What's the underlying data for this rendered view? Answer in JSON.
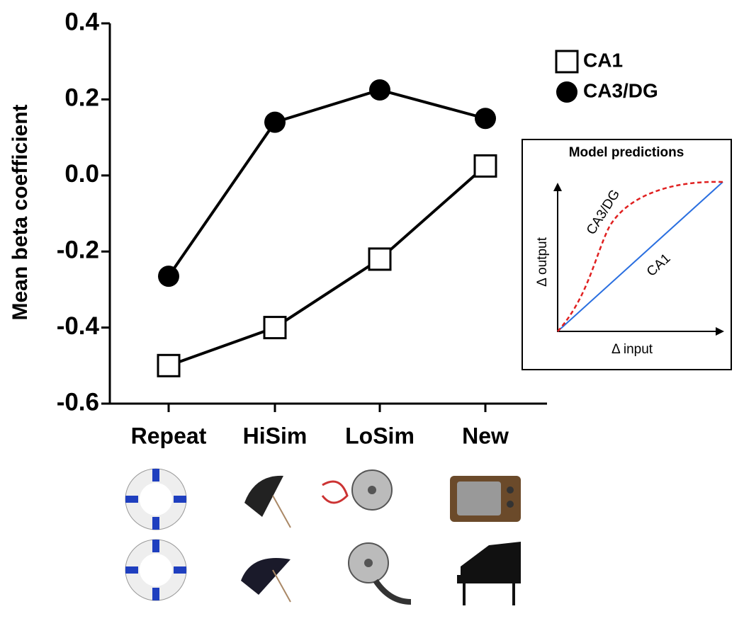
{
  "chart_data": {
    "type": "line",
    "y_label": "Mean beta coefficient",
    "categories": [
      "Repeat",
      "HiSim",
      "LoSim",
      "New"
    ],
    "series": [
      {
        "name": "CA1",
        "color": "#000000",
        "marker": "square",
        "values": [
          -0.5,
          -0.4,
          -0.22,
          0.025
        ]
      },
      {
        "name": "CA3/DG",
        "color": "#000000",
        "marker": "circle",
        "values": [
          -0.265,
          0.14,
          0.225,
          0.15
        ]
      }
    ],
    "ylim": [
      -0.6,
      0.4
    ],
    "yticks": [
      0.4,
      0.2,
      {
        "value": 0,
        "label": "0.0"
      },
      -0.2,
      -0.4,
      -0.6
    ],
    "legend": "top-right",
    "inset": {
      "title": "Model predictions",
      "curve_labels": [
        "CA3/DG",
        "CA1"
      ],
      "y_label": "Δ output",
      "x_label": "Δ input"
    }
  }
}
